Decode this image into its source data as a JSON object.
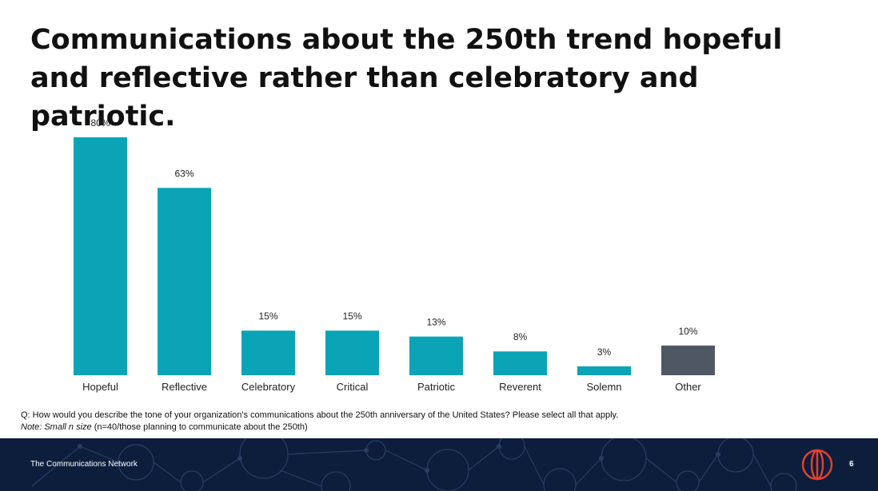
{
  "slide": {
    "title": "Communications about the 250th trend hopeful and reflective rather than celebratory and patriotic.",
    "question": "Q: How would you describe the tone of your organization's communications about the 250th anniversary of the United States? Please select all that apply.",
    "note_label": "Note: Small n size",
    "note_text": " (n=40/those planning to communicate about the 250th)"
  },
  "footer": {
    "org_name": "The Communications Network",
    "page_number": "6",
    "logo_icon": "communications-network-logo-icon"
  },
  "colors": {
    "bar_primary": "#0aa4b6",
    "bar_other": "#4f5862",
    "footer_bg": "#0d1e3d",
    "logo_red": "#e8412c"
  },
  "chart_data": {
    "type": "bar",
    "title": "",
    "xlabel": "",
    "ylabel": "",
    "ylim": [
      0,
      80
    ],
    "grid": false,
    "legend": "none",
    "categories": [
      "Hopeful",
      "Reflective",
      "Celebratory",
      "Critical",
      "Patriotic",
      "Reverent",
      "Solemn",
      "Other"
    ],
    "values": [
      80,
      63,
      15,
      15,
      13,
      8,
      3,
      10
    ],
    "data_labels": [
      "80%",
      "63%",
      "15%",
      "15%",
      "13%",
      "8%",
      "3%",
      "10%"
    ],
    "bar_colors": [
      "#0aa4b6",
      "#0aa4b6",
      "#0aa4b6",
      "#0aa4b6",
      "#0aa4b6",
      "#0aa4b6",
      "#0aa4b6",
      "#4f5862"
    ]
  }
}
